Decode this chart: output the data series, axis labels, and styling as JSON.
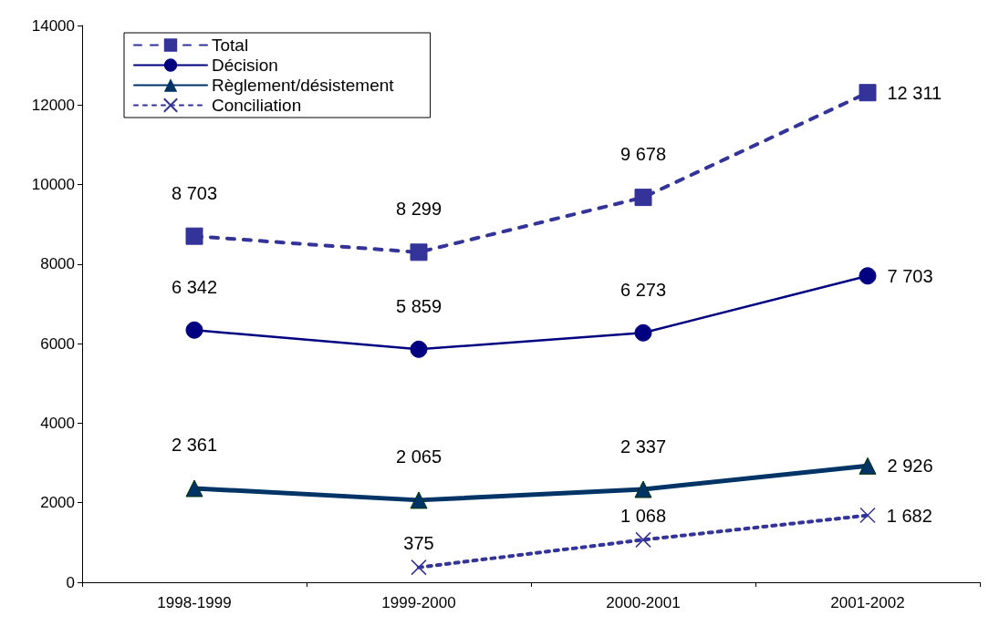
{
  "chart_data": {
    "type": "line",
    "categories": [
      "1998-1999",
      "1999-2000",
      "2000-2001",
      "2001-2002"
    ],
    "series": [
      {
        "name": "Total",
        "color": "#333399",
        "marker": "square",
        "line_style": "dashed",
        "values": [
          8703,
          8299,
          9678,
          12311
        ],
        "value_labels": [
          "8 703",
          "8 299",
          "9 678",
          "12 311"
        ]
      },
      {
        "name": "Décision",
        "color": "#000080",
        "marker": "circle",
        "line_style": "solid",
        "values": [
          6342,
          5859,
          6273,
          7703
        ],
        "value_labels": [
          "6 342",
          "5 859",
          "6 273",
          "7 703"
        ]
      },
      {
        "name": "Règlement/désistement",
        "color": "#003366",
        "marker": "triangle",
        "line_style": "solid",
        "values": [
          2361,
          2065,
          2337,
          2926
        ],
        "value_labels": [
          "2 361",
          "2 065",
          "2 337",
          "2 926"
        ]
      },
      {
        "name": "Conciliation",
        "color": "#333399",
        "marker": "cross",
        "line_style": "dotted",
        "values": [
          null,
          375,
          1068,
          1682
        ],
        "value_labels": [
          null,
          "375",
          "1 068",
          "1 682"
        ]
      }
    ],
    "ylim": [
      0,
      14000
    ],
    "yticks": [
      0,
      2000,
      4000,
      6000,
      8000,
      10000,
      12000,
      14000
    ],
    "grid": false,
    "legend": "top left"
  }
}
